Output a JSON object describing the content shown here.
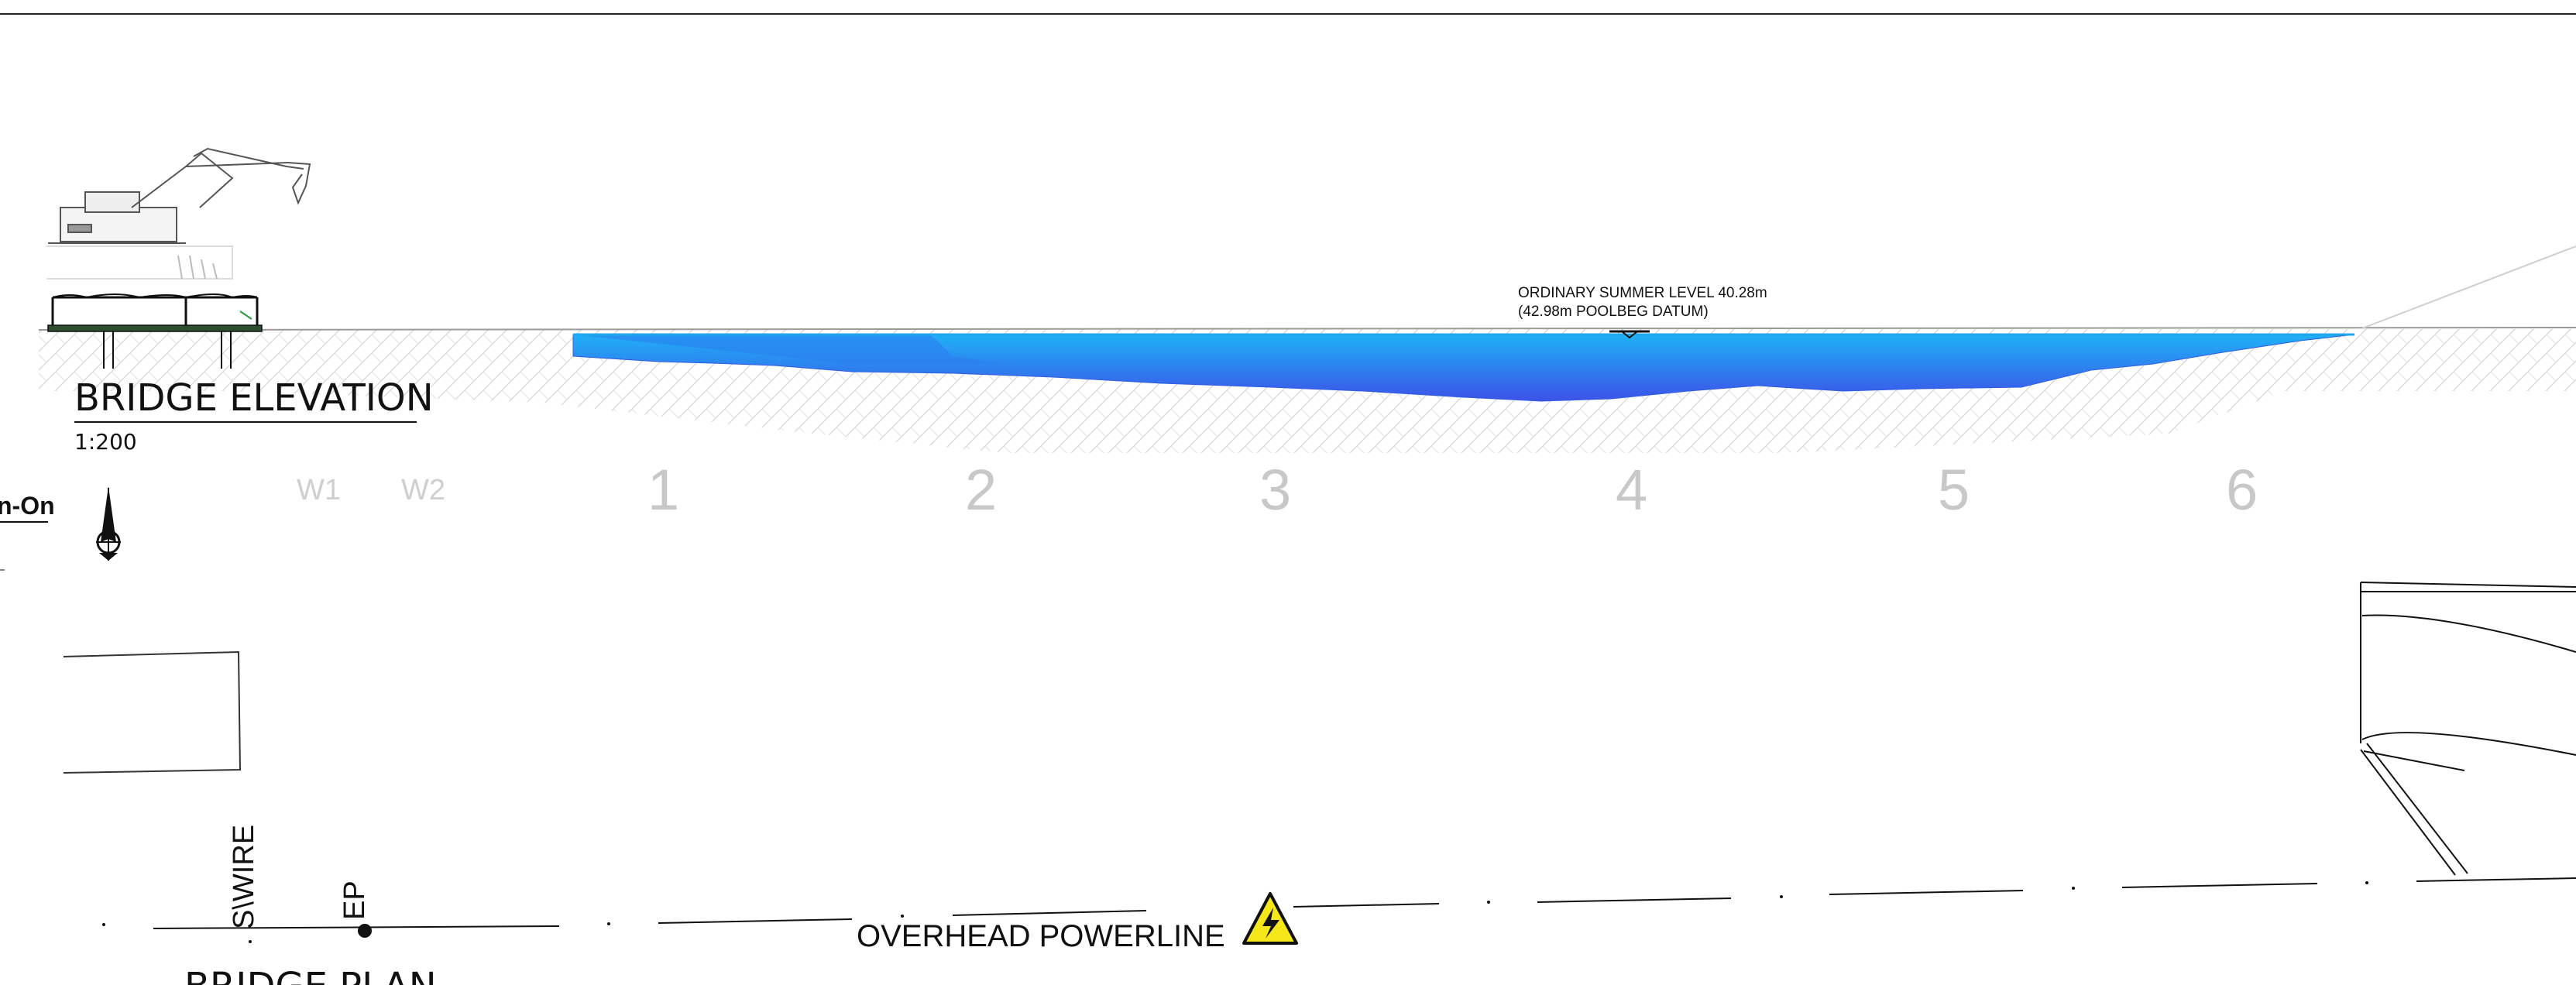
{
  "elevation": {
    "title": "BRIDGE ELEVATION",
    "scale": "1:200"
  },
  "plan": {
    "title": "BRIDGE PLAN"
  },
  "water_level": {
    "line1": "ORDINARY SUMMER LEVEL 40.28m",
    "line2": "(42.98m POOLBEG DATUM)"
  },
  "gridlines": {
    "minor": [
      "W1",
      "W2"
    ],
    "major": [
      "1",
      "2",
      "3",
      "4",
      "5",
      "6"
    ]
  },
  "labels": {
    "cut_off": "n-On",
    "swire": "S\\WIRE",
    "ep": "EP",
    "powerline": "OVERHEAD POWERLINE"
  },
  "colors": {
    "water_top": "#28a6f4",
    "water_bottom": "#3b55e6",
    "hatch": "#dcdcdc",
    "warning": "#f5e71a"
  },
  "icons": [
    "north-arrow-icon",
    "excavator-icon",
    "electrical-hazard-icon"
  ]
}
